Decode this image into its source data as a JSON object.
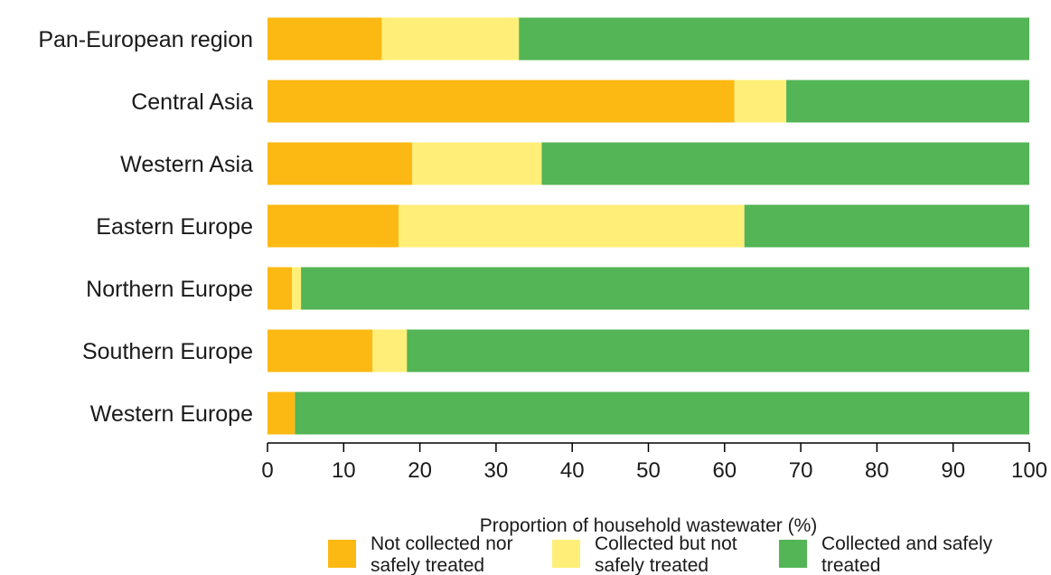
{
  "chart_data": {
    "type": "bar",
    "orientation": "horizontal",
    "stacked": true,
    "categories": [
      "Pan-European region",
      "Central Asia",
      "Western Asia",
      "Eastern Europe",
      "Northern Europe",
      "Southern Europe",
      "Western Europe"
    ],
    "series": [
      {
        "name": "Not collected nor safely treated",
        "color": "#FDB913",
        "values": [
          15,
          61.3,
          19,
          17.2,
          3.2,
          13.8,
          3.6
        ]
      },
      {
        "name": "Collected but not safely treated",
        "color": "#FFEF78",
        "values": [
          18,
          6.8,
          17,
          45.4,
          1.2,
          4.5,
          0
        ]
      },
      {
        "name": "Collected and safely treated",
        "color": "#53B556",
        "values": [
          67,
          31.9,
          64,
          37.4,
          95.6,
          81.7,
          96.4
        ]
      }
    ],
    "xlabel": "Proportion of household wastewater (%)",
    "xlim": [
      0,
      100
    ],
    "xticks": [
      0,
      10,
      20,
      30,
      40,
      50,
      60,
      70,
      80,
      90,
      100
    ],
    "grid": false,
    "legend_position": "bottom"
  }
}
